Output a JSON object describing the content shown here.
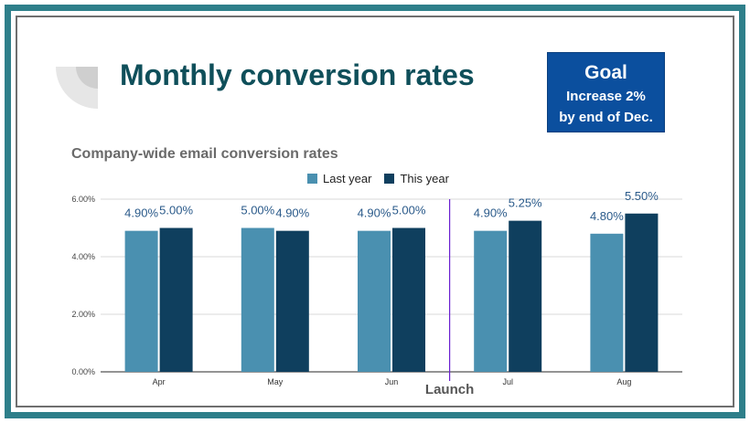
{
  "slide": {
    "title": "Monthly conversion rates",
    "goal_title": "Goal",
    "goal_line1": "Increase 2%",
    "goal_line2": "by end of Dec."
  },
  "colors": {
    "frame": "#2e7f8a",
    "last_year": "#4a90b0",
    "this_year": "#0f3f5e",
    "launch_line": "#6a1fd0",
    "goal_bg": "#0b4f9e",
    "label": "#2a5a8a"
  },
  "chart_data": {
    "type": "bar",
    "title": "Company-wide email conversion rates",
    "categories": [
      "Apr",
      "May",
      "Jun",
      "Jul",
      "Aug"
    ],
    "series": [
      {
        "name": "Last year",
        "values": [
          4.9,
          5.0,
          4.9,
          4.9,
          4.8
        ],
        "labels": [
          "4.90%",
          "5.00%",
          "4.90%",
          "4.90%",
          "4.80%"
        ]
      },
      {
        "name": "This year",
        "values": [
          5.0,
          4.9,
          5.0,
          5.25,
          5.5
        ],
        "labels": [
          "5.00%",
          "4.90%",
          "5.00%",
          "5.25%",
          "5.50%"
        ]
      }
    ],
    "ylim": [
      0,
      6
    ],
    "yticks": [
      0,
      2,
      4,
      6
    ],
    "ytick_labels": [
      "0.00%",
      "2.00%",
      "4.00%",
      "6.00%"
    ],
    "grid": true,
    "legend": "top-center",
    "annotation": {
      "text": "Launch",
      "between": [
        "Jun",
        "Jul"
      ]
    }
  }
}
